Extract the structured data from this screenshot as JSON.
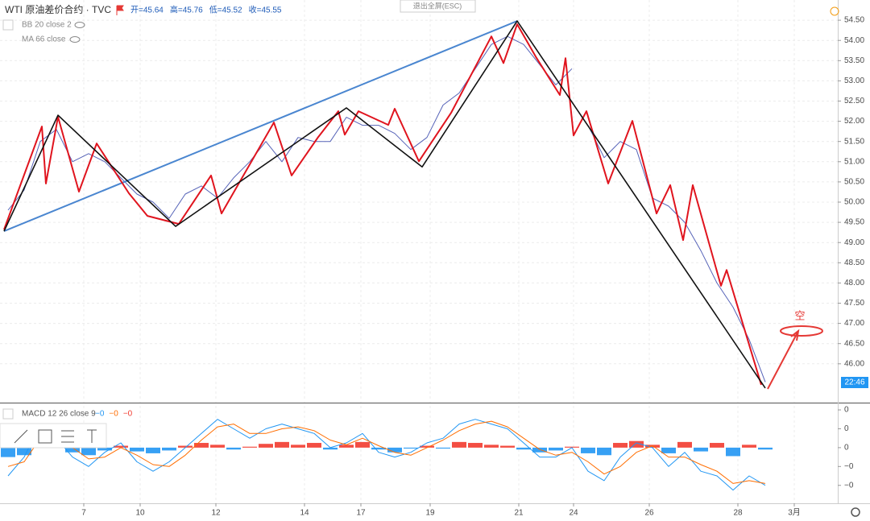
{
  "chart_data": [
    {
      "type": "line",
      "title": "WTI 原油差价合约 · TVC",
      "ohlc": [
        "开=45.64",
        "高=45.76",
        "低=45.52",
        "收=45.55"
      ],
      "indicators": [
        "BB 20 close 2",
        "MA 66 close"
      ],
      "button": "退出全屏(ESC)",
      "countdown": "22:46",
      "annotation": "空",
      "grid": true,
      "xlim": [
        0,
        104
      ],
      "xticks": [
        {
          "value": 10.4,
          "label": "7"
        },
        {
          "value": 17.4,
          "label": "10"
        },
        {
          "value": 26.8,
          "label": "12"
        },
        {
          "value": 37.8,
          "label": "14"
        },
        {
          "value": 44.8,
          "label": "17"
        },
        {
          "value": 53.4,
          "label": "19"
        },
        {
          "value": 64.4,
          "label": "21"
        },
        {
          "value": 71.2,
          "label": "24"
        },
        {
          "value": 80.6,
          "label": "26"
        },
        {
          "value": 91.6,
          "label": "28"
        },
        {
          "value": 98.6,
          "label": "3月"
        }
      ],
      "ylim": [
        45.04,
        55.0
      ],
      "yticks": [
        {
          "value": 46,
          "label": "46.00"
        },
        {
          "value": 46.5,
          "label": "46.50"
        },
        {
          "value": 47,
          "label": "47.00"
        },
        {
          "value": 47.5,
          "label": "47.50"
        },
        {
          "value": 48,
          "label": "48.00"
        },
        {
          "value": 48.5,
          "label": "48.50"
        },
        {
          "value": 49,
          "label": "49.00"
        },
        {
          "value": 49.5,
          "label": "49.50"
        },
        {
          "value": 50,
          "label": "50.00"
        },
        {
          "value": 50.5,
          "label": "50.50"
        },
        {
          "value": 51,
          "label": "51.00"
        },
        {
          "value": 51.5,
          "label": "51.50"
        },
        {
          "value": 52,
          "label": "52.00"
        },
        {
          "value": 52.5,
          "label": "52.50"
        },
        {
          "value": 53,
          "label": "53.00"
        },
        {
          "value": 53.5,
          "label": "53.50"
        },
        {
          "value": 54,
          "label": "54.00"
        },
        {
          "value": 54.5,
          "label": "54.50"
        }
      ],
      "series": [
        {
          "color": "#5663b8",
          "width": 1,
          "x": [
            1,
            3,
            5,
            7,
            9,
            11,
            13,
            15,
            17,
            19,
            21,
            23,
            25,
            27,
            29,
            31,
            33,
            35,
            37,
            39,
            41,
            43,
            45,
            47,
            49,
            51,
            53,
            55,
            57,
            59,
            61,
            63,
            65,
            67,
            69,
            71,
            72,
            73,
            75,
            77,
            79,
            81,
            83,
            85,
            87,
            89,
            91,
            93,
            95
          ],
          "values": [
            49.8,
            50.3,
            51.5,
            51.8,
            51.0,
            51.2,
            51.0,
            50.6,
            50.2,
            50.0,
            49.6,
            50.2,
            50.4,
            50.1,
            50.6,
            51.0,
            51.5,
            51.0,
            51.6,
            51.5,
            51.5,
            52.1,
            51.9,
            51.9,
            51.7,
            51.3,
            51.6,
            52.4,
            52.7,
            53.3,
            53.9,
            54.1,
            53.9,
            53.4,
            52.9,
            53.3,
            null,
            51.9,
            51.1,
            51.5,
            51.3,
            50.1,
            49.9,
            49.5,
            48.8,
            48.0,
            47.4,
            46.6,
            45.55
          ]
        },
        {
          "color": "#4a86d0",
          "width": 2,
          "x": [
            0.5,
            64.2
          ],
          "values": [
            49.28,
            54.48
          ]
        },
        {
          "color": "#e0141e",
          "width": 2,
          "x": [
            0.5,
            5.2,
            5.7,
            7.2,
            9.8,
            12.0,
            16.0,
            18.3,
            22.2,
            26.2,
            27.5,
            34.0,
            36.2,
            39.5,
            42.0,
            42.8,
            44.5,
            48.2,
            49.0,
            52.0,
            56.0,
            61.0,
            62.5,
            64.2,
            66.5,
            69.5,
            70.2,
            71.2,
            72.8,
            75.5,
            78.5,
            81.5,
            83.2,
            84.8,
            86.0,
            89.5,
            90.2,
            94.5
          ],
          "values": [
            49.32,
            51.87,
            50.46,
            52.11,
            50.26,
            51.45,
            50.22,
            49.66,
            49.46,
            50.66,
            49.72,
            51.97,
            50.66,
            51.61,
            52.25,
            51.67,
            52.25,
            51.91,
            52.31,
            51.01,
            52.21,
            54.1,
            53.44,
            54.4,
            53.6,
            52.65,
            53.56,
            51.65,
            52.25,
            50.46,
            52.01,
            49.72,
            50.42,
            49.06,
            50.42,
            47.93,
            48.32,
            45.48
          ]
        },
        {
          "color": "#111111",
          "width": 1.6,
          "x": [
            0.5,
            7.2,
            21.8,
            43.0,
            52.4,
            64.2,
            95.0
          ],
          "values": [
            49.28,
            52.15,
            49.4,
            52.33,
            50.87,
            54.48,
            45.4
          ]
        }
      ]
    },
    {
      "type": "macd",
      "title": "MACD 12 26 close 9",
      "readouts": [
        {
          "text": "−0",
          "color": "#2196f3"
        },
        {
          "text": "−0",
          "color": "#ff6d00"
        },
        {
          "text": "−0",
          "color": "#f23b2f"
        }
      ],
      "xlim": [
        0,
        104
      ],
      "ylim": [
        -0.59,
        0.46
      ],
      "yticks": [
        {
          "value": 0.4,
          "label": "0"
        },
        {
          "value": 0.2,
          "label": "0"
        },
        {
          "value": 0,
          "label": "0"
        },
        {
          "value": -0.2,
          "label": "−0"
        },
        {
          "value": -0.4,
          "label": "−0"
        }
      ],
      "x": [
        1,
        3,
        5,
        7,
        9,
        11,
        13,
        15,
        17,
        19,
        21,
        23,
        25,
        27,
        29,
        31,
        33,
        35,
        37,
        39,
        41,
        43,
        45,
        47,
        49,
        51,
        53,
        55,
        57,
        59,
        61,
        63,
        65,
        67,
        69,
        71,
        73,
        75,
        77,
        79,
        81,
        83,
        85,
        87,
        89,
        91,
        93,
        95
      ],
      "histogram": {
        "up_color": "#f23b2f",
        "down_color": "#2196f3",
        "values": [
          -0.1,
          -0.08,
          0.02,
          0.06,
          -0.05,
          -0.08,
          -0.03,
          0.02,
          -0.04,
          -0.06,
          -0.03,
          0.02,
          0.05,
          0.03,
          -0.02,
          0.01,
          0.04,
          0.06,
          0.03,
          0.05,
          -0.02,
          0.03,
          0.06,
          -0.02,
          -0.05,
          -0.01,
          0.02,
          -0.01,
          0.06,
          0.05,
          0.03,
          0.02,
          -0.02,
          -0.05,
          -0.03,
          0.01,
          -0.06,
          -0.08,
          0.05,
          0.07,
          0.03,
          -0.06,
          0.06,
          -0.04,
          0.05,
          -0.09,
          0.03,
          -0.02
        ]
      },
      "series": [
        {
          "color": "#2196f3",
          "values": [
            -0.3,
            -0.1,
            0.25,
            0.1,
            -0.1,
            -0.2,
            -0.05,
            0.05,
            -0.15,
            -0.25,
            -0.15,
            0.0,
            0.15,
            0.3,
            0.2,
            0.1,
            0.2,
            0.25,
            0.2,
            0.15,
            0.0,
            0.05,
            0.15,
            -0.05,
            -0.1,
            -0.05,
            0.05,
            0.1,
            0.25,
            0.3,
            0.25,
            0.2,
            0.05,
            -0.1,
            -0.1,
            0.0,
            -0.25,
            -0.35,
            -0.1,
            0.05,
            0.0,
            -0.2,
            -0.05,
            -0.25,
            -0.3,
            -0.45,
            -0.3,
            -0.4
          ]
        },
        {
          "color": "#ff6d00",
          "values": [
            -0.2,
            -0.15,
            0.1,
            0.15,
            0.0,
            -0.12,
            -0.1,
            0.0,
            -0.08,
            -0.18,
            -0.2,
            -0.08,
            0.08,
            0.22,
            0.25,
            0.15,
            0.15,
            0.2,
            0.22,
            0.18,
            0.08,
            0.03,
            0.1,
            0.02,
            -0.05,
            -0.08,
            0.0,
            0.08,
            0.18,
            0.25,
            0.28,
            0.22,
            0.1,
            -0.02,
            -0.08,
            -0.05,
            -0.15,
            -0.28,
            -0.2,
            -0.05,
            0.02,
            -0.1,
            -0.1,
            -0.18,
            -0.25,
            -0.38,
            -0.35,
            -0.38
          ]
        }
      ]
    }
  ]
}
